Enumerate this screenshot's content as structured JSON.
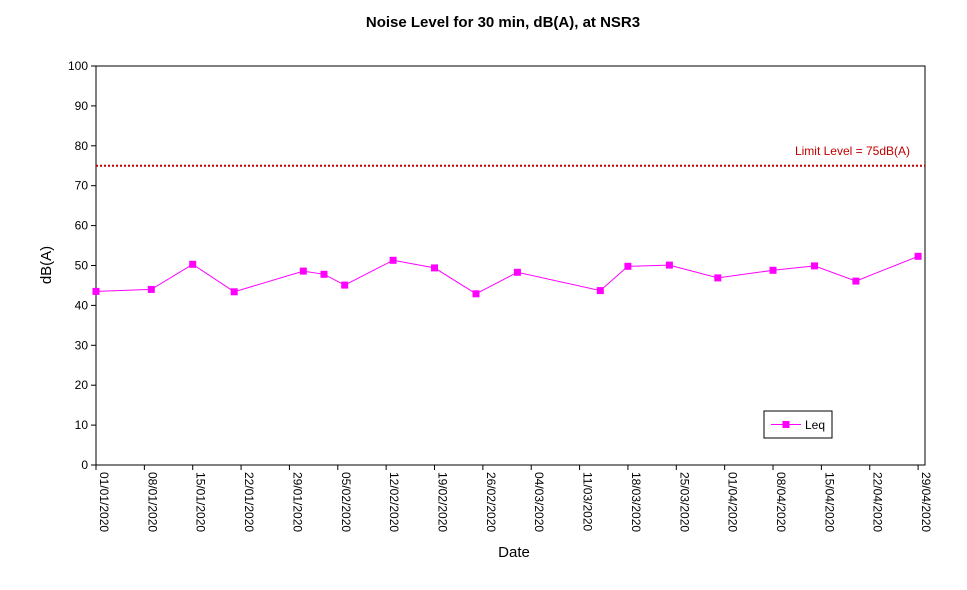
{
  "chart_data": {
    "type": "line",
    "title": "Noise Level for 30 min, dB(A), at NSR3",
    "xlabel": "Date",
    "ylabel": "dB(A)",
    "ylim": [
      0,
      100
    ],
    "yticks": [
      0,
      10,
      20,
      30,
      40,
      50,
      60,
      70,
      80,
      90,
      100
    ],
    "xlim": [
      "01/01/2020",
      "30/04/2020"
    ],
    "xticks": [
      "01/01/2020",
      "08/01/2020",
      "15/01/2020",
      "22/01/2020",
      "29/01/2020",
      "05/02/2020",
      "12/02/2020",
      "19/02/2020",
      "26/02/2020",
      "04/03/2020",
      "11/03/2020",
      "18/03/2020",
      "25/03/2020",
      "01/04/2020",
      "08/04/2020",
      "15/04/2020",
      "22/04/2020",
      "29/04/2020"
    ],
    "grid": false,
    "legend": "bottom-right",
    "series": [
      {
        "name": "Leq",
        "color": "#ff00ff",
        "marker": "square",
        "points": [
          {
            "x": "01/01/2020",
            "y": 43.5
          },
          {
            "x": "09/01/2020",
            "y": 44.0
          },
          {
            "x": "15/01/2020",
            "y": 50.3
          },
          {
            "x": "21/01/2020",
            "y": 43.4
          },
          {
            "x": "31/01/2020",
            "y": 48.6
          },
          {
            "x": "03/02/2020",
            "y": 47.8
          },
          {
            "x": "06/02/2020",
            "y": 45.1
          },
          {
            "x": "13/02/2020",
            "y": 51.3
          },
          {
            "x": "19/02/2020",
            "y": 49.4
          },
          {
            "x": "25/02/2020",
            "y": 42.9
          },
          {
            "x": "02/03/2020",
            "y": 48.3
          },
          {
            "x": "14/03/2020",
            "y": 43.7
          },
          {
            "x": "18/03/2020",
            "y": 49.8
          },
          {
            "x": "24/03/2020",
            "y": 50.1
          },
          {
            "x": "31/03/2020",
            "y": 46.9
          },
          {
            "x": "08/04/2020",
            "y": 48.8
          },
          {
            "x": "14/04/2020",
            "y": 49.9
          },
          {
            "x": "20/04/2020",
            "y": 46.1
          },
          {
            "x": "29/04/2020",
            "y": 52.3
          }
        ]
      }
    ],
    "limit": {
      "label": "Limit Level  = 75dB(A)",
      "value": 75,
      "color": "#c00000"
    }
  }
}
